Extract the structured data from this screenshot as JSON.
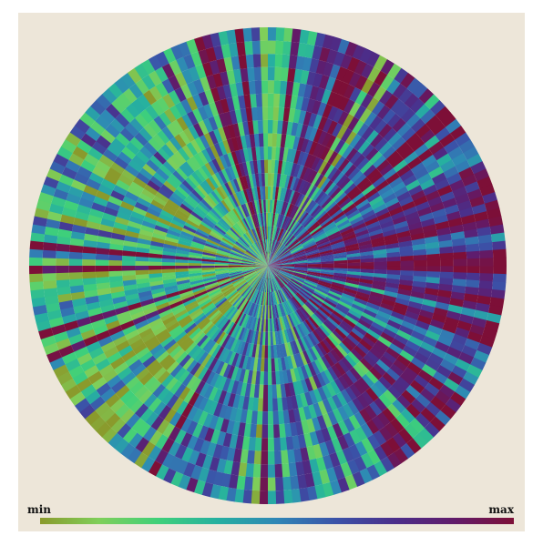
{
  "chart_data": {
    "type": "heatmap",
    "projection": "polar",
    "grid": false,
    "background_color": "#ede6d9",
    "colorscale": [
      "#8a9a2c",
      "#7fcf5a",
      "#3fd07a",
      "#26b0a0",
      "#2f86b6",
      "#3b52a8",
      "#4b2e8a",
      "#611b6a",
      "#7d0f37"
    ],
    "colorbar": {
      "min_label": "min",
      "max_label": "max",
      "orientation": "horizontal",
      "placement": "bottom"
    }
  }
}
